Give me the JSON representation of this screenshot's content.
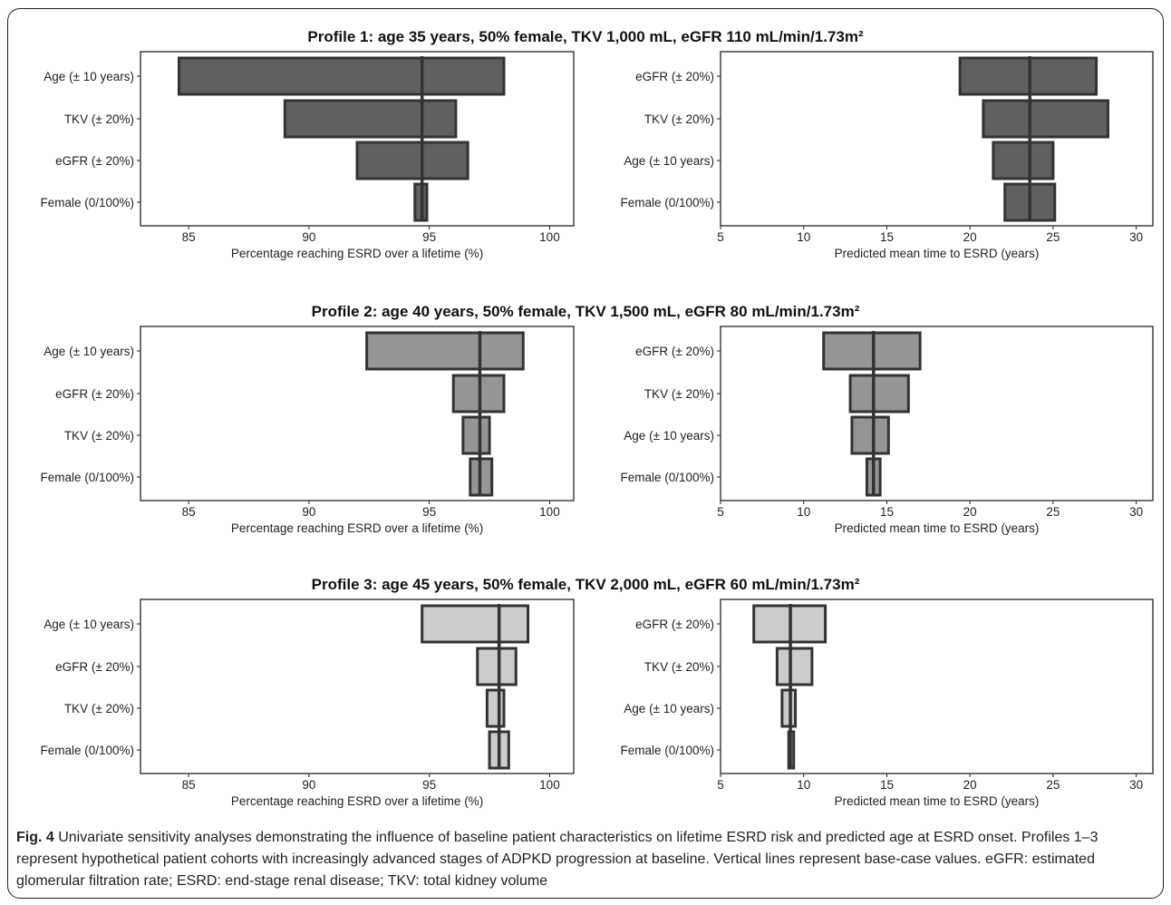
{
  "chart_data": [
    {
      "type": "tornado",
      "profile": "Profile 1",
      "title": "Profile 1: age 35 years, 50% female, TKV 1,000 mL, eGFR 110 mL/min/1.73m²",
      "xlabel": "Percentage reaching ESRD over a lifetime (%)",
      "xlim": [
        83,
        101
      ],
      "xticks": [
        85,
        90,
        95,
        100
      ],
      "base": 94.7,
      "fill": "#606060",
      "bars": [
        {
          "label": "Age (± 10 years)",
          "low": 84.6,
          "high": 98.1
        },
        {
          "label": "TKV (± 20%)",
          "low": 89.0,
          "high": 96.1
        },
        {
          "label": "eGFR (± 20%)",
          "low": 92.0,
          "high": 96.6
        },
        {
          "label": "Female (0/100%)",
          "low": 94.4,
          "high": 94.9
        }
      ]
    },
    {
      "type": "tornado",
      "profile": "Profile 1",
      "title": "",
      "xlabel": "Predicted mean time to ESRD (years)",
      "xlim": [
        5,
        31
      ],
      "xticks": [
        5,
        10,
        15,
        20,
        25,
        30
      ],
      "base": 23.6,
      "fill": "#606060",
      "bars": [
        {
          "label": "eGFR (± 20%)",
          "low": 19.4,
          "high": 27.6
        },
        {
          "label": "TKV (± 20%)",
          "low": 20.8,
          "high": 28.3
        },
        {
          "label": "Age (± 10 years)",
          "low": 21.4,
          "high": 25.0
        },
        {
          "label": "Female (0/100%)",
          "low": 22.1,
          "high": 25.1
        }
      ]
    },
    {
      "type": "tornado",
      "profile": "Profile 2",
      "title": "Profile 2: age 40 years, 50% female, TKV 1,500 mL, eGFR 80 mL/min/1.73m²",
      "xlabel": "Percentage reaching ESRD over a lifetime (%)",
      "xlim": [
        83,
        101
      ],
      "xticks": [
        85,
        90,
        95,
        100
      ],
      "base": 97.1,
      "fill": "#959595",
      "bars": [
        {
          "label": "Age (± 10 years)",
          "low": 92.4,
          "high": 98.9
        },
        {
          "label": "eGFR (± 20%)",
          "low": 96.0,
          "high": 98.1
        },
        {
          "label": "TKV (± 20%)",
          "low": 96.4,
          "high": 97.5
        },
        {
          "label": "Female (0/100%)",
          "low": 96.7,
          "high": 97.6
        }
      ]
    },
    {
      "type": "tornado",
      "profile": "Profile 2",
      "title": "",
      "xlabel": "Predicted mean time to ESRD (years)",
      "xlim": [
        5,
        31
      ],
      "xticks": [
        5,
        10,
        15,
        20,
        25,
        30
      ],
      "base": 14.2,
      "fill": "#959595",
      "bars": [
        {
          "label": "eGFR (± 20%)",
          "low": 11.2,
          "high": 17.0
        },
        {
          "label": "TKV (± 20%)",
          "low": 12.8,
          "high": 16.3
        },
        {
          "label": "Age (± 10 years)",
          "low": 12.9,
          "high": 15.1
        },
        {
          "label": "Female (0/100%)",
          "low": 13.8,
          "high": 14.6
        }
      ]
    },
    {
      "type": "tornado",
      "profile": "Profile 3",
      "title": "Profile 3: age 45 years, 50% female, TKV 2,000 mL, eGFR 60 mL/min/1.73m²",
      "xlabel": "Percentage reaching ESRD over a lifetime (%)",
      "xlim": [
        83,
        101
      ],
      "xticks": [
        85,
        90,
        95,
        100
      ],
      "base": 97.9,
      "fill": "#cccccc",
      "bars": [
        {
          "label": "Age (± 10 years)",
          "low": 94.7,
          "high": 99.1
        },
        {
          "label": "eGFR (± 20%)",
          "low": 97.0,
          "high": 98.6
        },
        {
          "label": "TKV (± 20%)",
          "low": 97.4,
          "high": 98.1
        },
        {
          "label": "Female (0/100%)",
          "low": 97.5,
          "high": 98.3
        }
      ]
    },
    {
      "type": "tornado",
      "profile": "Profile 3",
      "title": "",
      "xlabel": "Predicted mean time to ESRD (years)",
      "xlim": [
        5,
        31
      ],
      "xticks": [
        5,
        10,
        15,
        20,
        25,
        30
      ],
      "base": 9.2,
      "fill": "#cccccc",
      "bars": [
        {
          "label": "eGFR (± 20%)",
          "low": 7.0,
          "high": 11.3
        },
        {
          "label": "TKV (± 20%)",
          "low": 8.4,
          "high": 10.5
        },
        {
          "label": "Age (± 10 years)",
          "low": 8.7,
          "high": 9.5
        },
        {
          "label": "Female (0/100%)",
          "low": 9.1,
          "high": 9.4
        }
      ]
    }
  ],
  "caption": {
    "label": "Fig. 4",
    "text": " Univariate sensitivity analyses demonstrating the influence of baseline patient characteristics on lifetime ESRD risk and predicted age at ESRD onset. Profiles 1–3 represent hypothetical patient cohorts with increasingly advanced stages of ADPKD progression at baseline. Vertical lines represent base-case values. eGFR: estimated glomerular filtration rate; ESRD: end-stage renal disease; TKV: total kidney volume"
  },
  "colors": {
    "edge": "#333333",
    "base_line": "#333333",
    "axis": "#222222"
  }
}
